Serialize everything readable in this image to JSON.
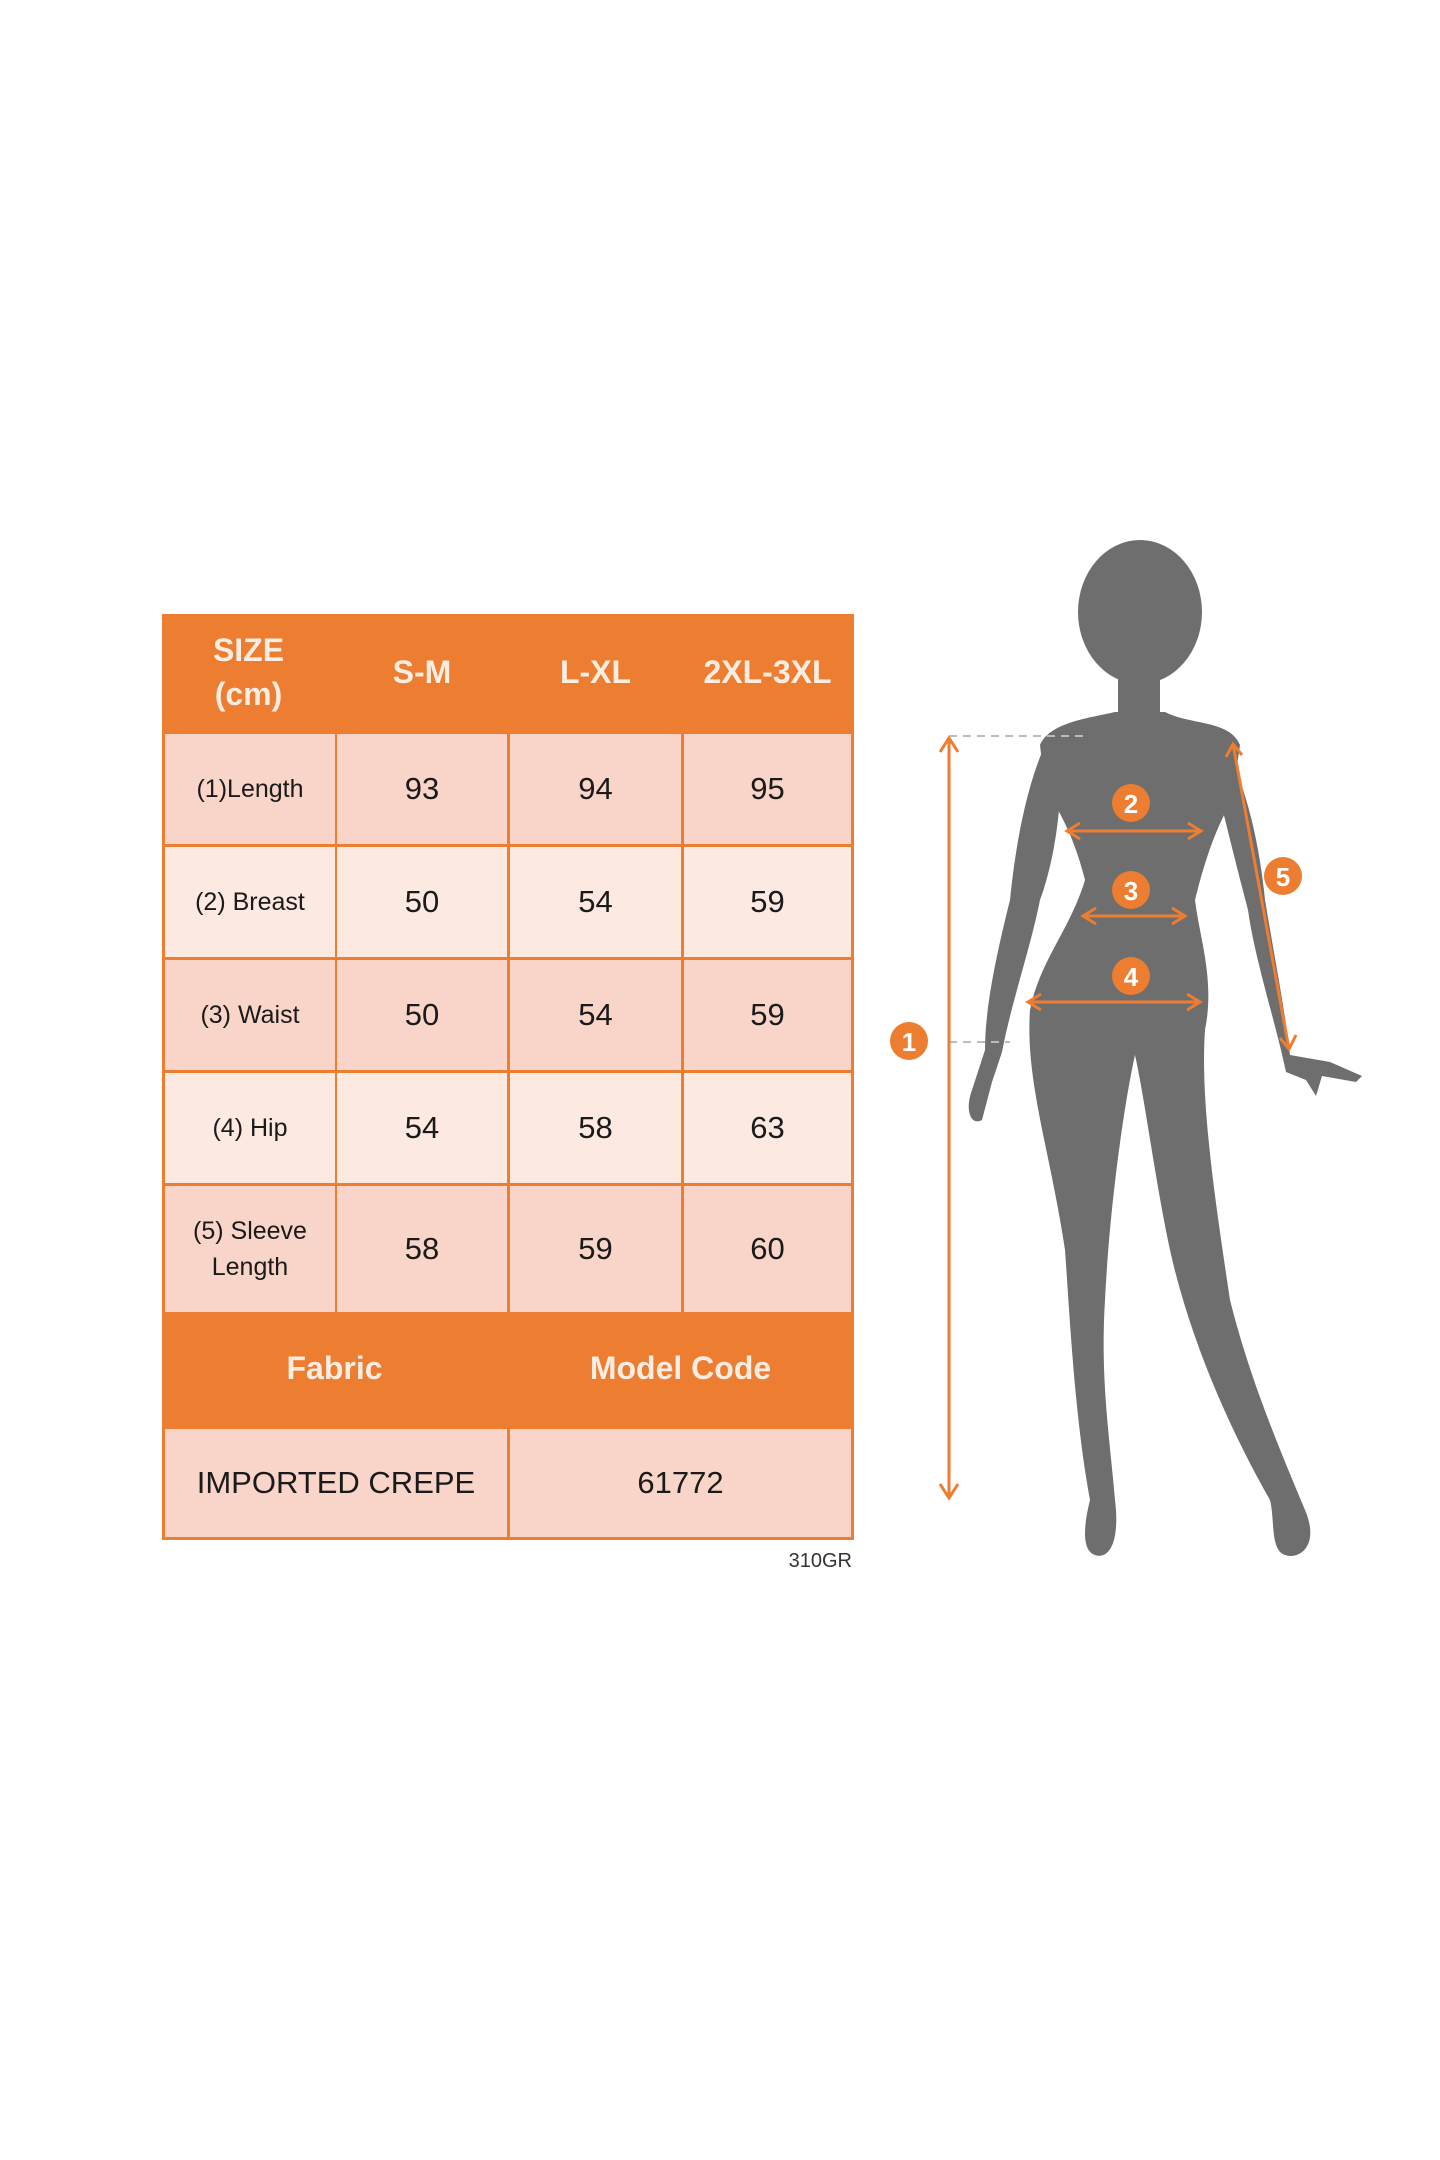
{
  "table": {
    "header": [
      "SIZE\n(cm)",
      "S-M",
      "L-XL",
      "2XL-3XL"
    ],
    "rows": [
      {
        "label": "(1)Length",
        "values": [
          "93",
          "94",
          "95"
        ]
      },
      {
        "label": "(2) Breast",
        "values": [
          "50",
          "54",
          "59"
        ]
      },
      {
        "label": "(3) Waist",
        "values": [
          "50",
          "54",
          "59"
        ]
      },
      {
        "label": "(4) Hip",
        "values": [
          "54",
          "58",
          "63"
        ]
      },
      {
        "label": "(5) Sleeve\nLength",
        "values": [
          "58",
          "59",
          "60"
        ]
      }
    ],
    "footer_header": [
      "Fabric",
      "Model Code"
    ],
    "footer_values": [
      "IMPORTED CREPE",
      "61772"
    ]
  },
  "code_note": "310GR",
  "figure": {
    "markers": [
      "1",
      "2",
      "3",
      "4",
      "5"
    ],
    "accent_color": "#ED7D31",
    "silhouette_color": "#6E6E6E"
  },
  "colors": {
    "header": "#ED7D31",
    "cell_dark": "#F8D5C8",
    "cell_light": "#FBE9E2"
  }
}
